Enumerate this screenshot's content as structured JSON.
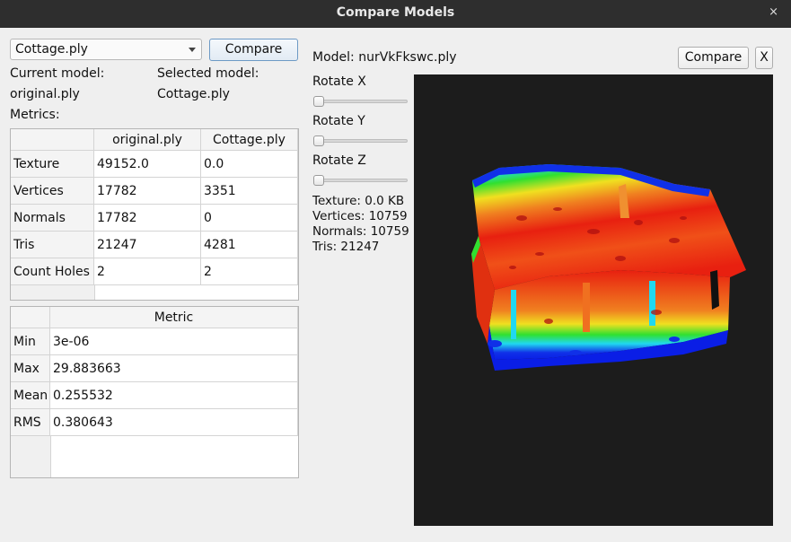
{
  "window": {
    "title": "Compare Models",
    "close_glyph": "×"
  },
  "left": {
    "model_select": {
      "value": "Cottage.ply"
    },
    "compare_label": "Compare",
    "current_model_label": "Current model:",
    "current_model_value": "original.ply",
    "selected_model_label": "Selected model:",
    "selected_model_value": "Cottage.ply",
    "metrics_label": "Metrics:",
    "stats_table": {
      "columns": [
        "original.ply",
        "Cottage.ply"
      ],
      "rows": [
        {
          "label": "Texture",
          "values": [
            "49152.0",
            "0.0"
          ]
        },
        {
          "label": "Vertices",
          "values": [
            "17782",
            "3351"
          ]
        },
        {
          "label": "Normals",
          "values": [
            "17782",
            "0"
          ]
        },
        {
          "label": "Tris",
          "values": [
            "21247",
            "4281"
          ]
        },
        {
          "label": "Count Holes",
          "values": [
            "2",
            "2"
          ]
        }
      ]
    },
    "metric_table": {
      "column": "Metric",
      "rows": [
        {
          "label": "Min",
          "value": "3e-06"
        },
        {
          "label": "Max",
          "value": "29.883663"
        },
        {
          "label": "Mean",
          "value": "0.255532"
        },
        {
          "label": "RMS",
          "value": "0.380643"
        }
      ]
    }
  },
  "right": {
    "model_label": "Model: nurVkFkswc.ply",
    "compare_label": "Compare",
    "close_label": "X",
    "rotate_x_label": "Rotate X",
    "rotate_y_label": "Rotate Y",
    "rotate_z_label": "Rotate Z",
    "rotate_values": [
      0,
      0,
      0
    ],
    "info": {
      "texture": "Texture: 0.0 KB",
      "vertices": "Vertices: 10759",
      "normals": "Normals: 10759",
      "tris": "Tris: 21247"
    }
  },
  "colors": {
    "titlebar": "#2e2e2e",
    "viewer_bg": "#1c1c1c",
    "heat_low": "#0a1ee6",
    "heat_mid": "#20d020",
    "heat_high": "#e01010"
  }
}
